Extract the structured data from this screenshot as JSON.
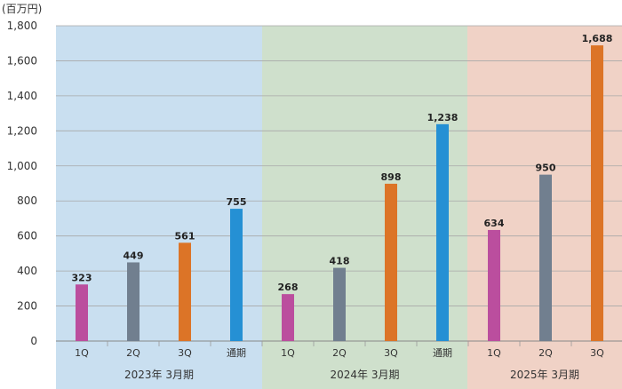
{
  "chart_data": {
    "type": "bar",
    "unit_label": "(百万円)",
    "ylim": [
      0,
      1800
    ],
    "yticks": [
      0,
      200,
      400,
      600,
      800,
      1000,
      1200,
      1400,
      1600,
      1800
    ],
    "ytick_labels": [
      "0",
      "200",
      "400",
      "600",
      "800",
      "1,000",
      "1,200",
      "1,400",
      "1,600",
      "1,800"
    ],
    "grid": true,
    "groups": [
      {
        "label": "2023年 3月期",
        "background": "#c9dff0",
        "bars": [
          {
            "category": "1Q",
            "value": 323,
            "value_label": "323",
            "color": "#bb4e9e"
          },
          {
            "category": "2Q",
            "value": 449,
            "value_label": "449",
            "color": "#717f8f"
          },
          {
            "category": "3Q",
            "value": 561,
            "value_label": "561",
            "color": "#dc7427"
          },
          {
            "category": "通期",
            "value": 755,
            "value_label": "755",
            "color": "#2590d4"
          }
        ]
      },
      {
        "label": "2024年 3月期",
        "background": "#cfe0cc",
        "bars": [
          {
            "category": "1Q",
            "value": 268,
            "value_label": "268",
            "color": "#bb4e9e"
          },
          {
            "category": "2Q",
            "value": 418,
            "value_label": "418",
            "color": "#717f8f"
          },
          {
            "category": "3Q",
            "value": 898,
            "value_label": "898",
            "color": "#dc7427"
          },
          {
            "category": "通期",
            "value": 1238,
            "value_label": "1,238",
            "color": "#2590d4"
          }
        ]
      },
      {
        "label": "2025年 3月期",
        "background": "#f0d2c6",
        "bars": [
          {
            "category": "1Q",
            "value": 634,
            "value_label": "634",
            "color": "#bb4e9e"
          },
          {
            "category": "2Q",
            "value": 950,
            "value_label": "950",
            "color": "#717f8f"
          },
          {
            "category": "3Q",
            "value": 1688,
            "value_label": "1,688",
            "color": "#dc7427"
          }
        ]
      }
    ]
  }
}
